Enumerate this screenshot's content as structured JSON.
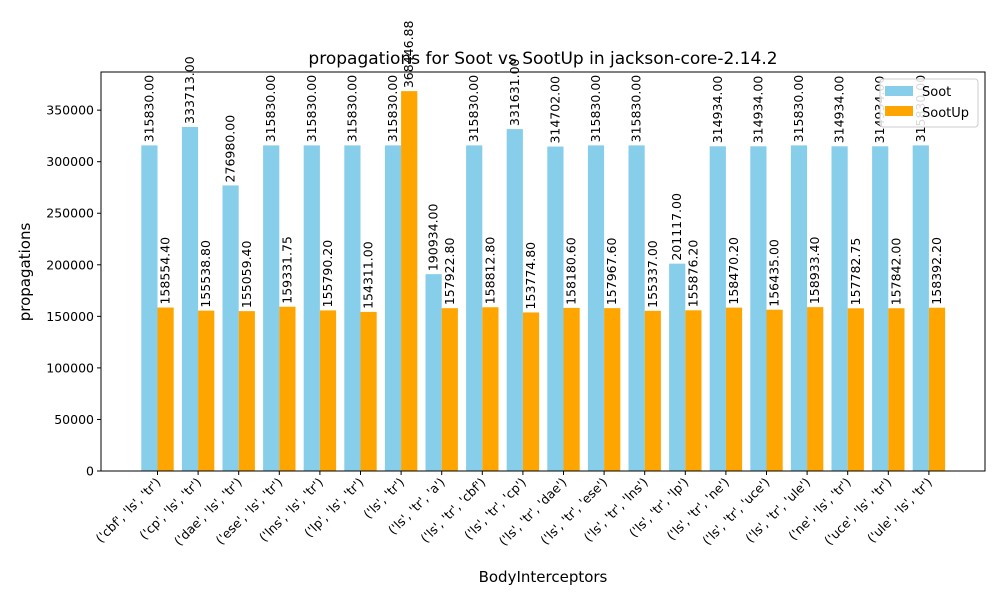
{
  "chart_data": {
    "type": "bar",
    "title": "propagations for Soot vs SootUp in jackson-core-2.14.2",
    "xlabel": "BodyInterceptors",
    "ylabel": "propagations",
    "ylim": [
      0,
      387000
    ],
    "yticks": [
      0,
      50000,
      100000,
      150000,
      200000,
      250000,
      300000,
      350000
    ],
    "legend_position": "top-right",
    "grid": false,
    "categories": [
      "('cbf', 'ls', 'tr')",
      "('cp', 'ls', 'tr')",
      "('dae', 'ls', 'tr')",
      "('ese', 'ls', 'tr')",
      "('lns', 'ls', 'tr')",
      "('lp', 'ls', 'tr')",
      "('ls', 'tr')",
      "('ls', 'tr', 'a')",
      "('ls', 'tr', 'cbf')",
      "('ls', 'tr', 'cp')",
      "('ls', 'tr', 'dae')",
      "('ls', 'tr', 'ese')",
      "('ls', 'tr', 'lns')",
      "('ls', 'tr', 'lp')",
      "('ls', 'tr', 'ne')",
      "('ls', 'tr', 'uce')",
      "('ls', 'tr', 'ule')",
      "('ne', 'ls', 'tr')",
      "('uce', 'ls', 'tr')",
      "('ule', 'ls', 'tr')"
    ],
    "series": [
      {
        "name": "Soot",
        "color": "#87ceeb",
        "values": [
          315830,
          333713,
          276980,
          315830,
          315830,
          315830,
          315830,
          190934,
          315830,
          331631,
          314702,
          315830,
          315830,
          201117,
          314934,
          314934,
          315830,
          314934,
          314934,
          315830
        ],
        "labels": [
          "315830.00",
          "333713.00",
          "276980.00",
          "315830.00",
          "315830.00",
          "315830.00",
          "315830.00",
          "190934.00",
          "315830.00",
          "331631.00",
          "314702.00",
          "315830.00",
          "315830.00",
          "201117.00",
          "314934.00",
          "314934.00",
          "315830.00",
          "314934.00",
          "314934.00",
          "315830.00"
        ]
      },
      {
        "name": "SootUp",
        "color": "#ffa500",
        "values": [
          158554.4,
          155538.8,
          155059.4,
          159331.75,
          155790.2,
          154311.0,
          368446.88,
          157922.8,
          158812.8,
          153774.8,
          158180.6,
          157967.6,
          155337.0,
          155876.2,
          158470.2,
          156435.0,
          158933.4,
          157782.75,
          157842.0,
          158392.2
        ],
        "labels": [
          "158554.40",
          "155538.80",
          "155059.40",
          "159331.75",
          "155790.20",
          "154311.00",
          "368446.88",
          "157922.80",
          "158812.80",
          "153774.80",
          "158180.60",
          "157967.60",
          "155337.00",
          "155876.20",
          "158470.20",
          "156435.00",
          "158933.40",
          "157782.75",
          "157842.00",
          "158392.20"
        ]
      }
    ]
  }
}
